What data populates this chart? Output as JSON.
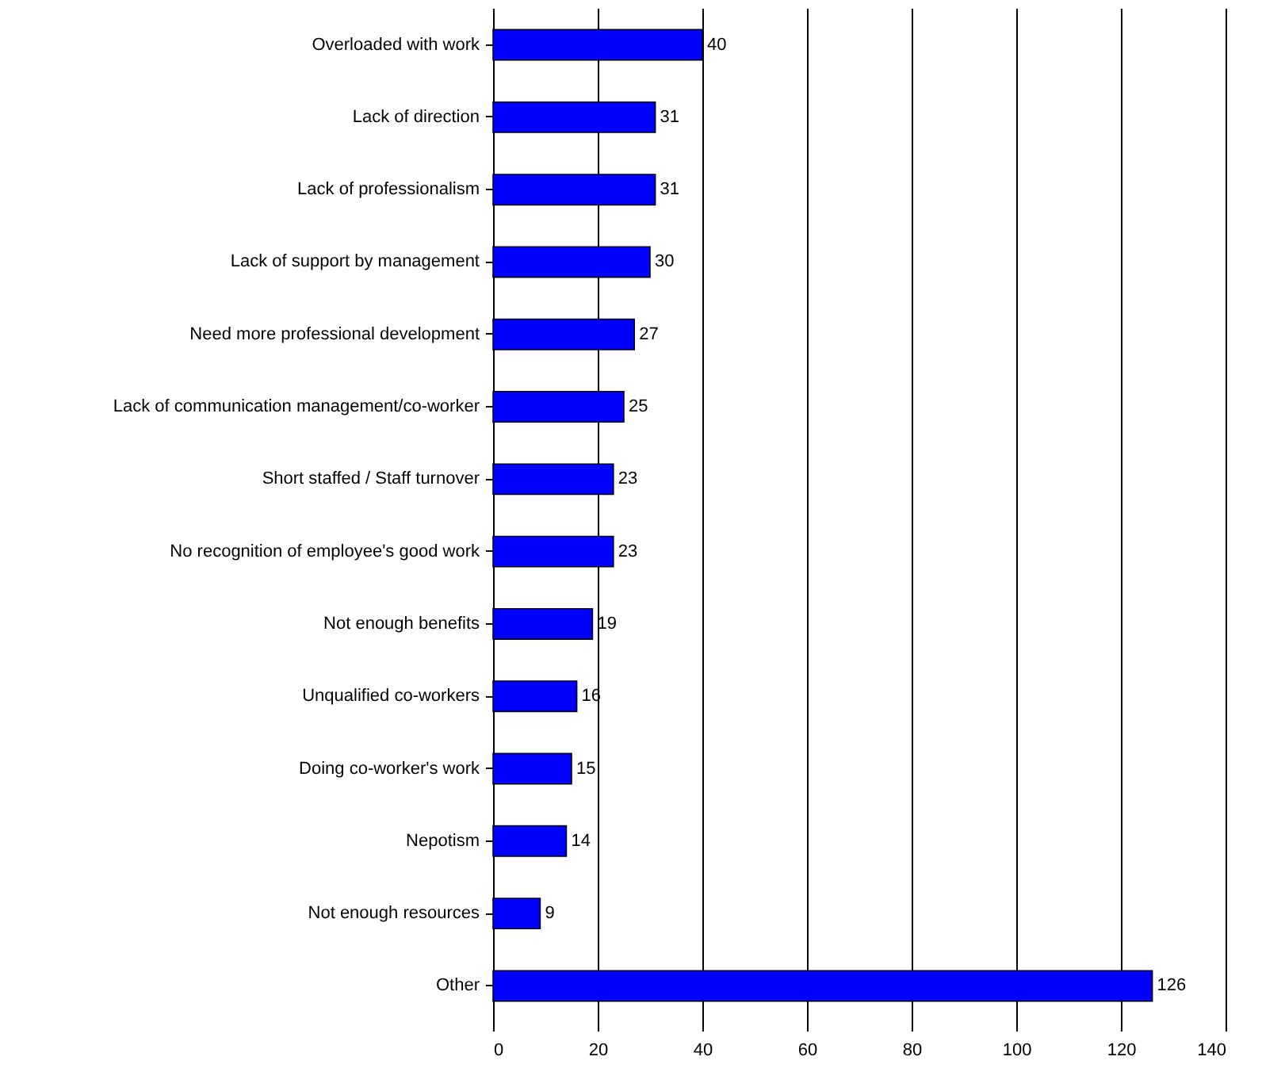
{
  "chart_data": {
    "type": "bar",
    "orientation": "horizontal",
    "categories": [
      "Overloaded with work",
      "Lack of direction",
      "Lack of professionalism",
      "Lack of support by management",
      "Need more professional development",
      "Lack of communication management/co-worker",
      "Short staffed / Staff turnover",
      "No recognition of employee's good work",
      "Not enough benefits",
      "Unqualified co-workers",
      "Doing co-worker's work",
      "Nepotism",
      "Not enough resources",
      "Other"
    ],
    "values": [
      40,
      31,
      31,
      30,
      27,
      25,
      23,
      23,
      19,
      16,
      15,
      14,
      9,
      126
    ],
    "color": "#0000ff",
    "xlim": [
      0,
      140
    ],
    "xticks": [
      0,
      20,
      40,
      60,
      80,
      100,
      120,
      140
    ],
    "grid": "x",
    "data_labels": true
  }
}
